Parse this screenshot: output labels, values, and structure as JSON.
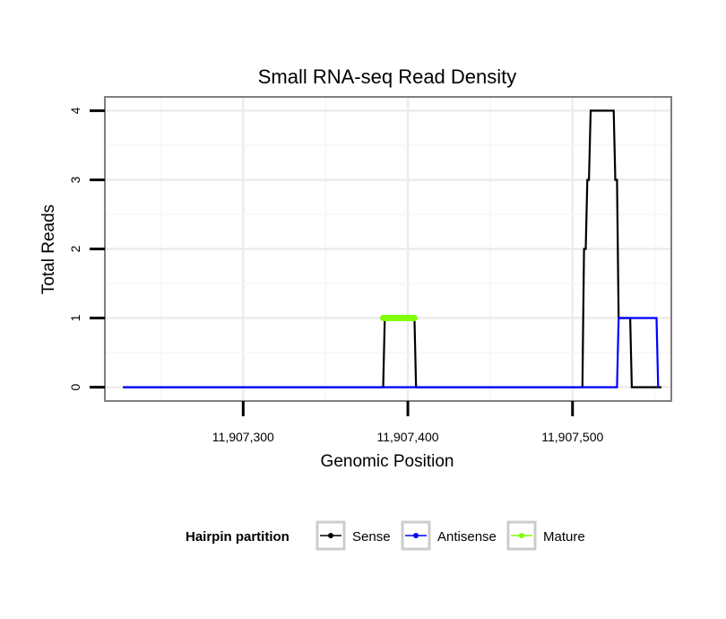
{
  "chart_data": {
    "type": "line",
    "title": "Small RNA-seq Read Density",
    "xlabel": "Genomic Position",
    "ylabel": "Total Reads",
    "xlim": [
      11907216,
      11907560
    ],
    "ylim": [
      -0.2,
      4.2
    ],
    "x_ticks": [
      11907300,
      11907400,
      11907500
    ],
    "x_tick_labels": [
      "11,907,300",
      "11,907,400",
      "11,907,500"
    ],
    "y_ticks": [
      0,
      1,
      2,
      3,
      4
    ],
    "y_tick_labels": [
      "0",
      "1",
      "2",
      "3",
      "4"
    ],
    "grid": true,
    "legend": {
      "title": "Hairpin partition",
      "position": "bottom",
      "entries": [
        {
          "name": "Sense",
          "color": "#000000"
        },
        {
          "name": "Antisense",
          "color": "#0000ff"
        },
        {
          "name": "Mature",
          "color": "#7fff00"
        }
      ]
    },
    "series": [
      {
        "name": "Sense",
        "color": "#000000",
        "x": [
          11907227,
          11907385,
          11907386,
          11907404,
          11907405,
          11907506,
          11907507,
          11907508,
          11907509,
          11907510,
          11907511,
          11907512,
          11907525,
          11907526,
          11907527,
          11907528,
          11907535,
          11907536,
          11907554
        ],
        "y": [
          0,
          0,
          1,
          1,
          0,
          0,
          2,
          2,
          3,
          3,
          4,
          4,
          4,
          3,
          3,
          1,
          1,
          0,
          0
        ]
      },
      {
        "name": "Antisense",
        "color": "#0000ff",
        "x": [
          11907227,
          11907527,
          11907528,
          11907551,
          11907552
        ],
        "y": [
          0,
          0,
          1,
          1,
          0
        ]
      },
      {
        "name": "Mature",
        "color": "#7fff00",
        "x": [
          11907385,
          11907404
        ],
        "y": [
          1,
          1
        ]
      }
    ]
  }
}
